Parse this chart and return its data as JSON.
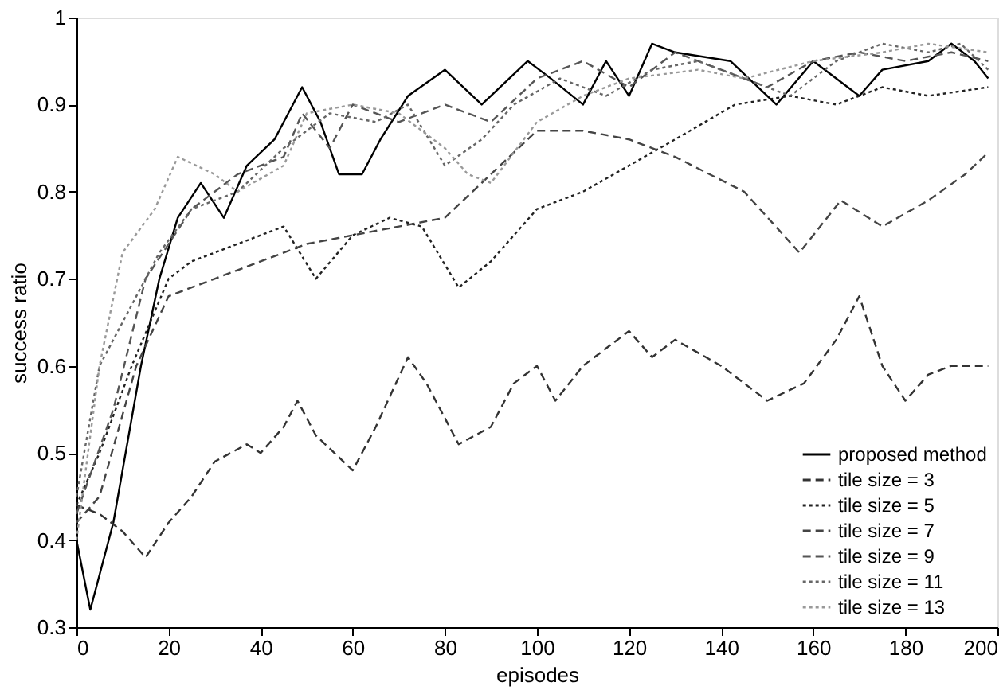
{
  "chart_data": {
    "type": "line",
    "xlabel": "episodes",
    "ylabel": "success ratio",
    "xlim": [
      0,
      200
    ],
    "xticks": [
      0,
      20,
      40,
      60,
      80,
      100,
      120,
      140,
      160,
      180,
      200
    ],
    "ylim": [
      0.3,
      1
    ],
    "yticks": [
      0.3,
      0.4,
      0.5,
      0.6,
      0.7,
      0.8,
      0.9,
      1
    ],
    "grid": false,
    "legend": "bottom right",
    "marker": "none",
    "series": [
      {
        "name": "proposed method",
        "color": "#000000",
        "line_style": "solid",
        "x": [
          0,
          3,
          8,
          14,
          18,
          22,
          27,
          32,
          37,
          43,
          49,
          53,
          57,
          62,
          66,
          72,
          80,
          88,
          98,
          103,
          110,
          115,
          120,
          125,
          130,
          142,
          152,
          160,
          170,
          175,
          185,
          190,
          195,
          198
        ],
        "values": [
          0.4,
          0.32,
          0.42,
          0.6,
          0.7,
          0.77,
          0.81,
          0.77,
          0.83,
          0.86,
          0.92,
          0.88,
          0.82,
          0.82,
          0.86,
          0.91,
          0.94,
          0.9,
          0.95,
          0.93,
          0.9,
          0.95,
          0.91,
          0.97,
          0.96,
          0.95,
          0.9,
          0.95,
          0.91,
          0.94,
          0.95,
          0.97,
          0.95,
          0.93
        ]
      },
      {
        "name": "tile size = 3",
        "color": "#333333",
        "line_style": "dashed",
        "x": [
          0,
          5,
          10,
          15,
          20,
          25,
          30,
          37,
          40,
          45,
          48,
          52,
          56,
          60,
          65,
          72,
          76,
          83,
          90,
          95,
          100,
          104,
          110,
          120,
          125,
          130,
          140,
          150,
          158,
          165,
          170,
          175,
          180,
          185,
          190,
          198
        ],
        "values": [
          0.44,
          0.43,
          0.41,
          0.38,
          0.42,
          0.45,
          0.49,
          0.51,
          0.5,
          0.53,
          0.56,
          0.52,
          0.5,
          0.48,
          0.53,
          0.61,
          0.58,
          0.51,
          0.53,
          0.58,
          0.6,
          0.56,
          0.6,
          0.64,
          0.61,
          0.63,
          0.6,
          0.56,
          0.58,
          0.63,
          0.68,
          0.6,
          0.56,
          0.59,
          0.6,
          0.6
        ]
      },
      {
        "name": "tile size = 5",
        "color": "#222222",
        "line_style": "dotted",
        "x": [
          0,
          5,
          12,
          20,
          25,
          35,
          45,
          52,
          60,
          68,
          75,
          83,
          90,
          100,
          110,
          120,
          130,
          143,
          155,
          165,
          175,
          185,
          198
        ],
        "values": [
          0.44,
          0.5,
          0.6,
          0.7,
          0.72,
          0.74,
          0.76,
          0.7,
          0.75,
          0.77,
          0.76,
          0.69,
          0.72,
          0.78,
          0.8,
          0.83,
          0.86,
          0.9,
          0.91,
          0.9,
          0.92,
          0.91,
          0.92
        ]
      },
      {
        "name": "tile size = 7",
        "color": "#444444",
        "line_style": "dashed",
        "x": [
          0,
          5,
          13,
          20,
          30,
          40,
          50,
          60,
          70,
          80,
          90,
          100,
          110,
          120,
          130,
          145,
          157,
          166,
          175,
          185,
          193,
          198
        ],
        "values": [
          0.42,
          0.45,
          0.6,
          0.68,
          0.7,
          0.72,
          0.74,
          0.75,
          0.76,
          0.77,
          0.82,
          0.87,
          0.87,
          0.86,
          0.84,
          0.8,
          0.73,
          0.79,
          0.76,
          0.79,
          0.82,
          0.845
        ]
      },
      {
        "name": "tile size = 9",
        "color": "#555555",
        "line_style": "dashed",
        "x": [
          0,
          8,
          15,
          25,
          35,
          45,
          49,
          55,
          60,
          70,
          80,
          90,
          100,
          110,
          120,
          130,
          140,
          150,
          160,
          170,
          180,
          190,
          198
        ],
        "values": [
          0.43,
          0.55,
          0.7,
          0.78,
          0.82,
          0.84,
          0.89,
          0.85,
          0.9,
          0.88,
          0.9,
          0.88,
          0.93,
          0.95,
          0.92,
          0.96,
          0.94,
          0.92,
          0.95,
          0.96,
          0.95,
          0.96,
          0.95
        ]
      },
      {
        "name": "tile size = 11",
        "color": "#666666",
        "line_style": "dotted",
        "x": [
          0,
          5,
          10,
          18,
          25,
          35,
          45,
          55,
          65,
          72,
          80,
          88,
          95,
          105,
          115,
          125,
          135,
          150,
          155,
          165,
          175,
          185,
          192,
          198
        ],
        "values": [
          0.45,
          0.6,
          0.65,
          0.73,
          0.78,
          0.8,
          0.85,
          0.89,
          0.88,
          0.9,
          0.83,
          0.86,
          0.9,
          0.93,
          0.91,
          0.94,
          0.95,
          0.92,
          0.91,
          0.95,
          0.97,
          0.96,
          0.97,
          0.94
        ]
      },
      {
        "name": "tile size = 13",
        "color": "#999999",
        "line_style": "dotted",
        "x": [
          0,
          5,
          10,
          17,
          22,
          30,
          35,
          45,
          50,
          60,
          70,
          80,
          85,
          90,
          100,
          110,
          120,
          135,
          145,
          160,
          175,
          185,
          198
        ],
        "values": [
          0.4,
          0.6,
          0.73,
          0.78,
          0.84,
          0.82,
          0.8,
          0.83,
          0.89,
          0.9,
          0.89,
          0.85,
          0.82,
          0.81,
          0.88,
          0.91,
          0.93,
          0.94,
          0.93,
          0.95,
          0.96,
          0.97,
          0.96
        ]
      }
    ]
  }
}
